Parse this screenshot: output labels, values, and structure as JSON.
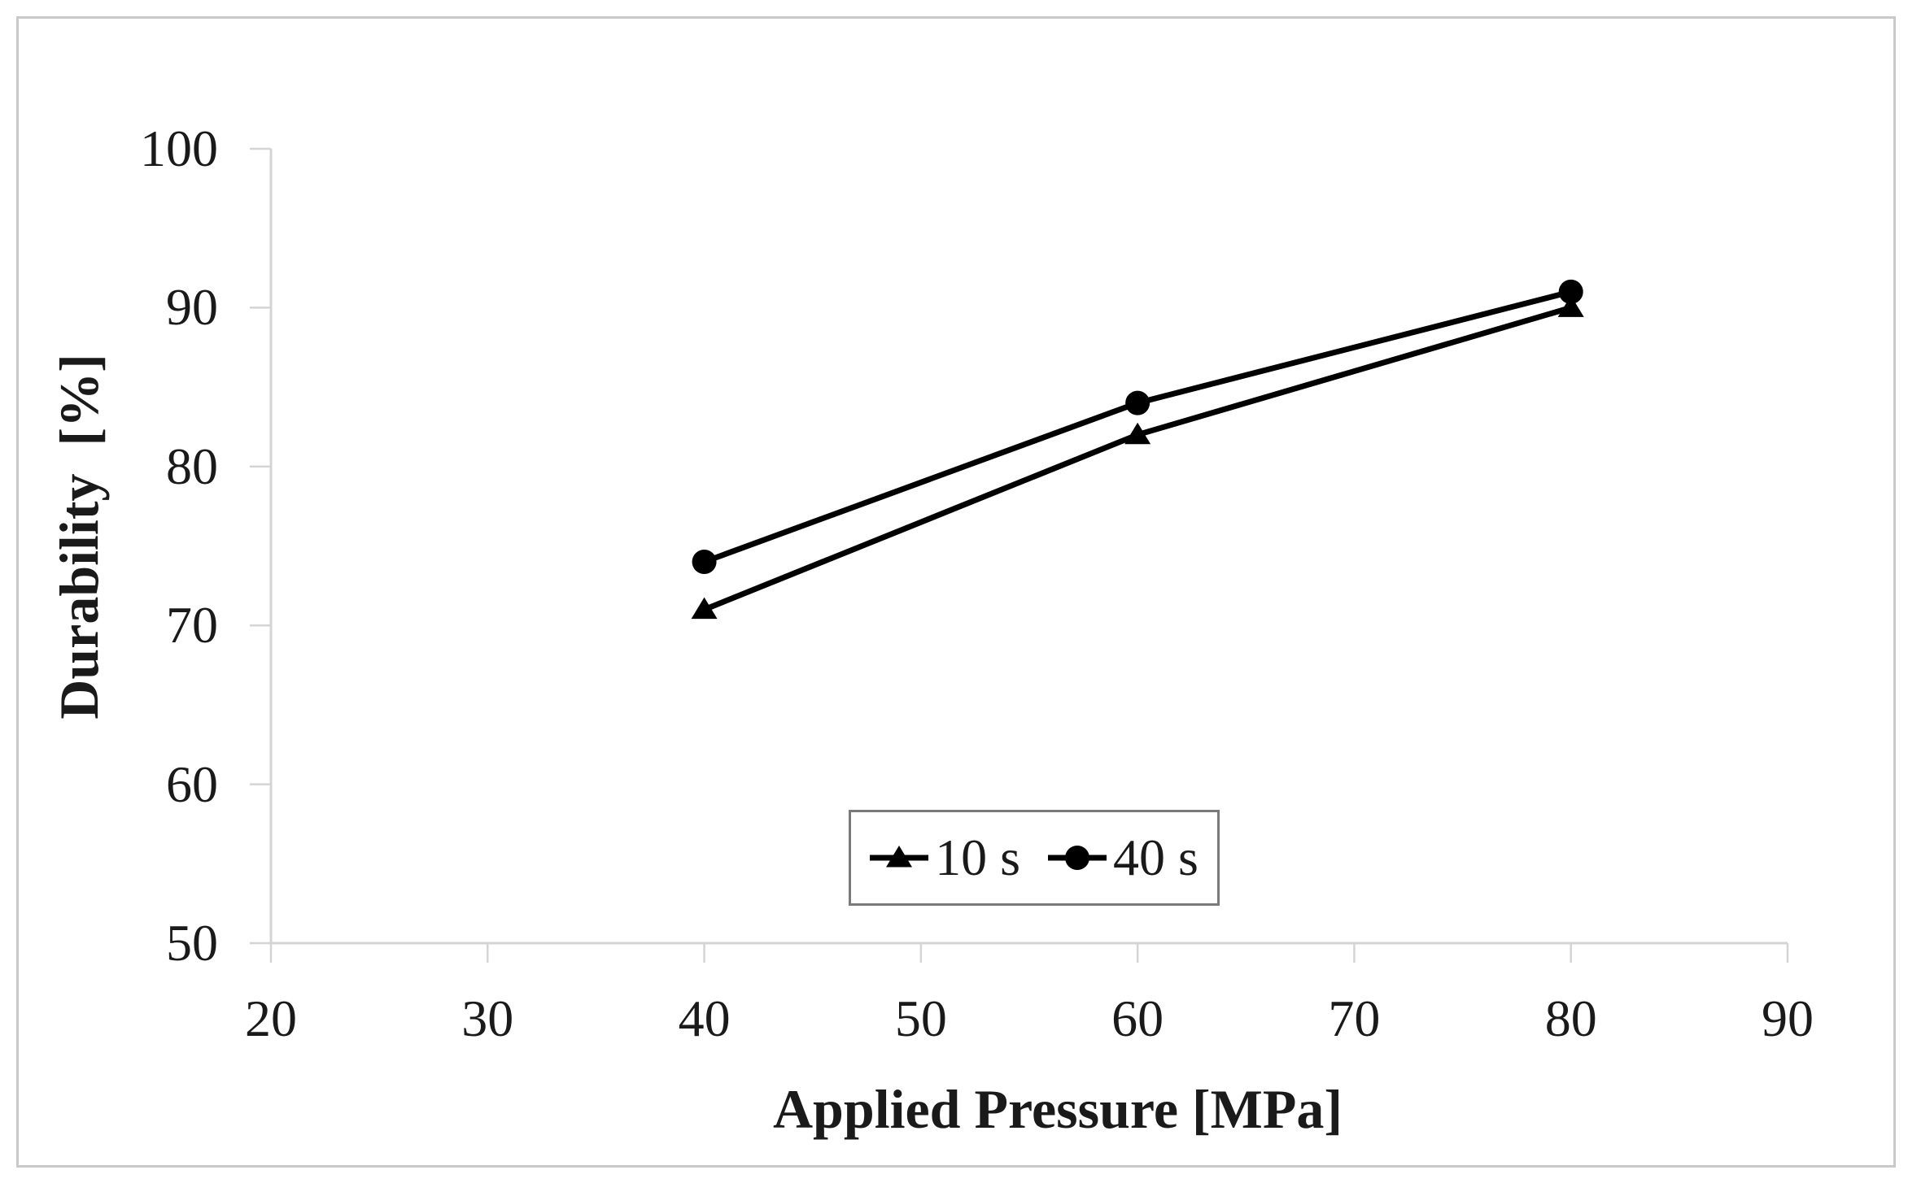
{
  "figure": {
    "background": "#ffffff",
    "border_color": "#c9c9c9"
  },
  "chart_data": {
    "type": "line",
    "title": "",
    "xlabel": "Applied Pressure [MPa]",
    "ylabel": "Durability  [%]",
    "x": [
      40,
      60,
      80
    ],
    "series": [
      {
        "name": "10 s",
        "marker": "triangle",
        "color": "#000000",
        "values": [
          71,
          82,
          90
        ]
      },
      {
        "name": "40 s",
        "marker": "circle",
        "color": "#000000",
        "values": [
          74,
          84,
          91
        ]
      }
    ],
    "xlim": [
      20,
      90
    ],
    "ylim": [
      50,
      100
    ],
    "x_ticks": [
      20,
      30,
      40,
      50,
      60,
      70,
      80,
      90
    ],
    "y_ticks": [
      50,
      60,
      70,
      80,
      90,
      100
    ],
    "grid": false,
    "legend_position": "inside-bottom-center",
    "axis_color": "#d4d4d4",
    "text_color": "#1a1a1a",
    "line_color": "#000000"
  },
  "legend": {
    "border_color": "#7a7a7a",
    "items": [
      {
        "label": "10 s",
        "marker": "triangle"
      },
      {
        "label": "40 s",
        "marker": "circle"
      }
    ]
  }
}
